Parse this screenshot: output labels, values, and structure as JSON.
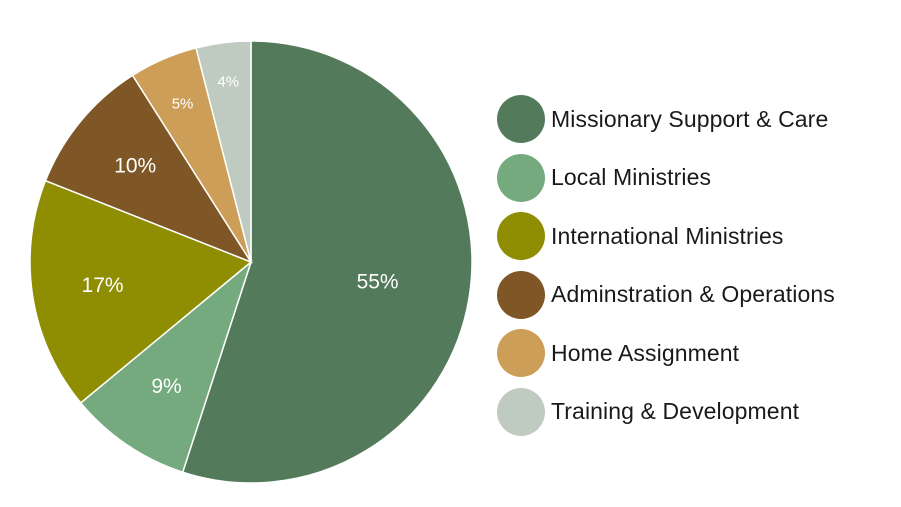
{
  "chart_data": {
    "type": "pie",
    "categories": [
      "Missionary Support & Care",
      "Local Ministries",
      "International Ministries",
      "Adminstration & Operations",
      "Home Assignment",
      "Training & Development"
    ],
    "values": [
      55,
      9,
      17,
      10,
      5,
      4
    ],
    "data_labels": [
      "55%",
      "9%",
      "17%",
      "10%",
      "5%",
      "4%"
    ],
    "colors": [
      "#537b5b",
      "#74aa7d",
      "#8f8d02",
      "#7f5727",
      "#cc9e57",
      "#bfcbc1"
    ],
    "start_angle_deg": 0,
    "direction": "clockwise",
    "legend_position": "right"
  }
}
